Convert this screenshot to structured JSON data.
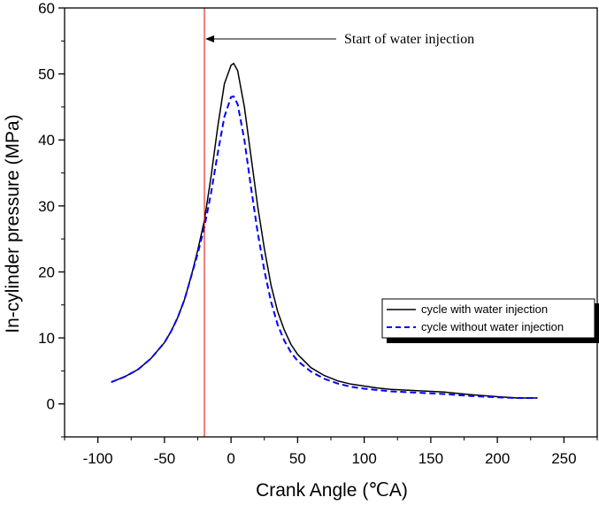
{
  "chart_data": {
    "type": "line",
    "title": "",
    "xlabel": "Crank Angle (℃A)",
    "ylabel": "In-cylinder pressure (MPa)",
    "xlim": [
      -125,
      275
    ],
    "ylim": [
      -5,
      60
    ],
    "xticks": [
      -100,
      -50,
      0,
      50,
      100,
      150,
      200,
      250
    ],
    "yticks": [
      0,
      10,
      20,
      30,
      40,
      50,
      60
    ],
    "grid": false,
    "legend_position": "right",
    "annotation": {
      "text": "Start of water injection",
      "x": -20
    },
    "series": [
      {
        "name": "cycle with water injection",
        "color": "#000000",
        "style": "solid",
        "x": [
          -90,
          -80,
          -70,
          -60,
          -50,
          -45,
          -40,
          -35,
          -30,
          -25,
          -20,
          -15,
          -10,
          -5,
          0,
          2,
          5,
          10,
          15,
          20,
          25,
          30,
          35,
          40,
          45,
          50,
          60,
          70,
          80,
          90,
          100,
          110,
          120,
          140,
          160,
          180,
          200,
          215,
          230
        ],
        "values": [
          3.3,
          4.1,
          5.2,
          6.9,
          9.3,
          11.0,
          13.1,
          15.8,
          19.3,
          23.3,
          27.8,
          34.5,
          42.0,
          48.5,
          51.3,
          51.6,
          50.5,
          45.0,
          37.5,
          30.0,
          23.5,
          18.0,
          14.0,
          11.2,
          9.0,
          7.5,
          5.5,
          4.3,
          3.5,
          3.0,
          2.7,
          2.4,
          2.2,
          2.0,
          1.8,
          1.4,
          1.1,
          0.9,
          0.9
        ]
      },
      {
        "name": "cycle without water injection",
        "color": "#0000ff",
        "style": "dashed",
        "x": [
          -90,
          -80,
          -70,
          -60,
          -50,
          -45,
          -40,
          -35,
          -30,
          -25,
          -20,
          -15,
          -10,
          -5,
          0,
          2,
          5,
          10,
          15,
          20,
          25,
          30,
          35,
          40,
          45,
          50,
          60,
          70,
          80,
          90,
          100,
          110,
          120,
          140,
          160,
          180,
          200,
          215,
          230
        ],
        "values": [
          3.3,
          4.1,
          5.2,
          6.9,
          9.3,
          11.0,
          13.1,
          15.8,
          19.3,
          22.8,
          26.8,
          32.0,
          38.0,
          43.5,
          46.5,
          46.6,
          45.4,
          40.0,
          32.8,
          26.0,
          20.2,
          15.5,
          12.0,
          9.6,
          7.8,
          6.5,
          4.9,
          3.8,
          3.1,
          2.6,
          2.3,
          2.1,
          1.9,
          1.7,
          1.5,
          1.2,
          1.0,
          0.9,
          0.9
        ]
      }
    ]
  }
}
